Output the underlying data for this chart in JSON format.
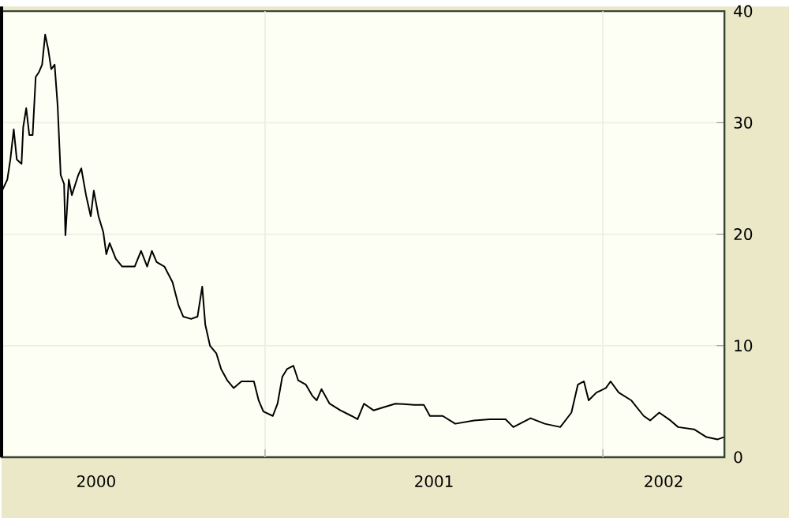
{
  "chart_data": {
    "type": "line",
    "color": "#000000",
    "grid": true,
    "marker": "none",
    "line_style": "solid",
    "x": [
      2000.223,
      2000.237,
      2000.246,
      2000.256,
      2000.265,
      2000.279,
      2000.284,
      2000.293,
      2000.302,
      2000.312,
      2000.321,
      2000.33,
      2000.34,
      2000.349,
      2000.358,
      2000.367,
      2000.377,
      2000.386,
      2000.395,
      2000.405,
      2000.409,
      2000.419,
      2000.428,
      2000.447,
      2000.456,
      2000.47,
      2000.484,
      2000.493,
      2000.507,
      2000.521,
      2000.53,
      2000.54,
      2000.558,
      2000.577,
      2000.6,
      2000.614,
      2000.633,
      2000.651,
      2000.665,
      2000.679,
      2000.702,
      2000.726,
      2000.744,
      2000.758,
      2000.781,
      2000.8,
      2000.814,
      2000.823,
      2000.837,
      2000.856,
      2000.87,
      2000.888,
      2000.907,
      2000.93,
      2000.953,
      2000.967,
      2000.981,
      2000.995,
      2001.023,
      2001.037,
      2001.051,
      2001.065,
      2001.084,
      2001.098,
      2001.121,
      2001.14,
      2001.153,
      2001.167,
      2001.191,
      2001.223,
      2001.256,
      2001.274,
      2001.293,
      2001.321,
      2001.353,
      2001.386,
      2001.442,
      2001.47,
      2001.488,
      2001.526,
      2001.563,
      2001.619,
      2001.665,
      2001.712,
      2001.735,
      2001.786,
      2001.828,
      2001.874,
      2001.907,
      2001.926,
      2001.944,
      2001.958,
      2001.981,
      2002.009,
      2002.023,
      2002.047,
      2002.084,
      2002.121,
      2002.14,
      2002.167,
      2002.2,
      2002.223,
      2002.27,
      2002.307,
      2002.34,
      2002.358
    ],
    "values": [
      24.0,
      24.9,
      26.7,
      29.4,
      26.7,
      26.3,
      29.6,
      31.3,
      28.9,
      28.9,
      34.1,
      34.5,
      35.2,
      37.9,
      36.6,
      34.8,
      35.2,
      31.5,
      25.3,
      24.5,
      19.9,
      24.9,
      23.5,
      25.3,
      25.9,
      23.5,
      21.6,
      23.9,
      21.6,
      20.2,
      18.2,
      19.2,
      17.8,
      17.1,
      17.1,
      17.1,
      18.5,
      17.1,
      18.5,
      17.5,
      17.1,
      15.7,
      13.6,
      12.6,
      12.4,
      12.6,
      15.3,
      11.9,
      10.0,
      9.3,
      7.9,
      6.9,
      6.2,
      6.8,
      6.8,
      6.8,
      5.1,
      4.1,
      3.7,
      4.8,
      7.2,
      7.9,
      8.2,
      6.9,
      6.5,
      5.5,
      5.1,
      6.1,
      4.8,
      4.2,
      3.7,
      3.4,
      4.8,
      4.2,
      4.5,
      4.8,
      4.7,
      4.7,
      3.7,
      3.7,
      3.0,
      3.3,
      3.4,
      3.4,
      2.7,
      3.5,
      3.0,
      2.7,
      4.0,
      6.5,
      6.8,
      5.1,
      5.8,
      6.2,
      6.8,
      5.8,
      5.1,
      3.7,
      3.3,
      4.0,
      3.3,
      2.7,
      2.5,
      1.8,
      1.6,
      1.8
    ],
    "xlim": [
      2000.22,
      2002.36
    ],
    "xticks": [
      {
        "value": 2000.5,
        "label": "2000"
      },
      {
        "value": 2001,
        "label": null
      },
      {
        "value": 2001.5,
        "label": "2001"
      },
      {
        "value": 2002,
        "label": null
      },
      {
        "value": 2002.18,
        "label": "2002"
      }
    ],
    "ylim": [
      0,
      40
    ],
    "yticks": [
      0,
      10,
      20,
      30,
      40
    ]
  }
}
